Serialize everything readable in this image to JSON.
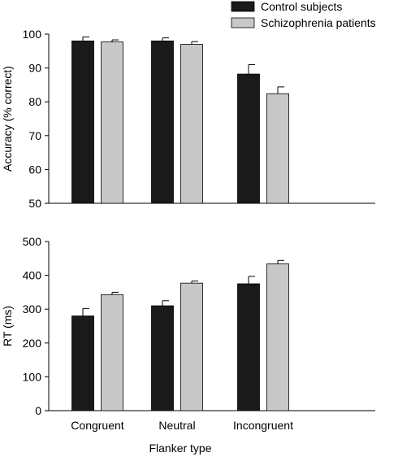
{
  "legend": {
    "placement": "top-right",
    "items": [
      {
        "label": "Control subjects",
        "color": "#1a1a1a"
      },
      {
        "label": "Schizophrenia patients",
        "color": "#c8c8c8"
      }
    ]
  },
  "chart_data": [
    {
      "type": "bar",
      "title": "",
      "ylabel": "Accuracy (% correct)",
      "xlabel": "",
      "ylim": [
        50,
        100
      ],
      "yticks": [
        50,
        60,
        70,
        80,
        90,
        100
      ],
      "categories": [
        "Congruent",
        "Neutral",
        "Incongruent"
      ],
      "show_category_labels": false,
      "series": [
        {
          "name": "Control subjects",
          "color": "#1a1a1a",
          "values": [
            98.0,
            98.0,
            88.2
          ],
          "errors": [
            1.2,
            0.9,
            2.8
          ]
        },
        {
          "name": "Schizophrenia patients",
          "color": "#c8c8c8",
          "values": [
            97.7,
            97.0,
            82.4
          ],
          "errors": [
            0.6,
            0.8,
            2.0
          ]
        }
      ]
    },
    {
      "type": "bar",
      "title": "",
      "ylabel": "RT (ms)",
      "xlabel": "Flanker type",
      "ylim": [
        0,
        500
      ],
      "yticks": [
        0,
        100,
        200,
        300,
        400,
        500
      ],
      "categories": [
        "Congruent",
        "Neutral",
        "Incongruent"
      ],
      "show_category_labels": true,
      "series": [
        {
          "name": "Control subjects",
          "color": "#1a1a1a",
          "values": [
            280,
            310,
            375
          ],
          "errors": [
            22,
            15,
            22
          ]
        },
        {
          "name": "Schizophrenia patients",
          "color": "#c8c8c8",
          "values": [
            343,
            377,
            434
          ],
          "errors": [
            7,
            6,
            10
          ]
        }
      ]
    }
  ]
}
